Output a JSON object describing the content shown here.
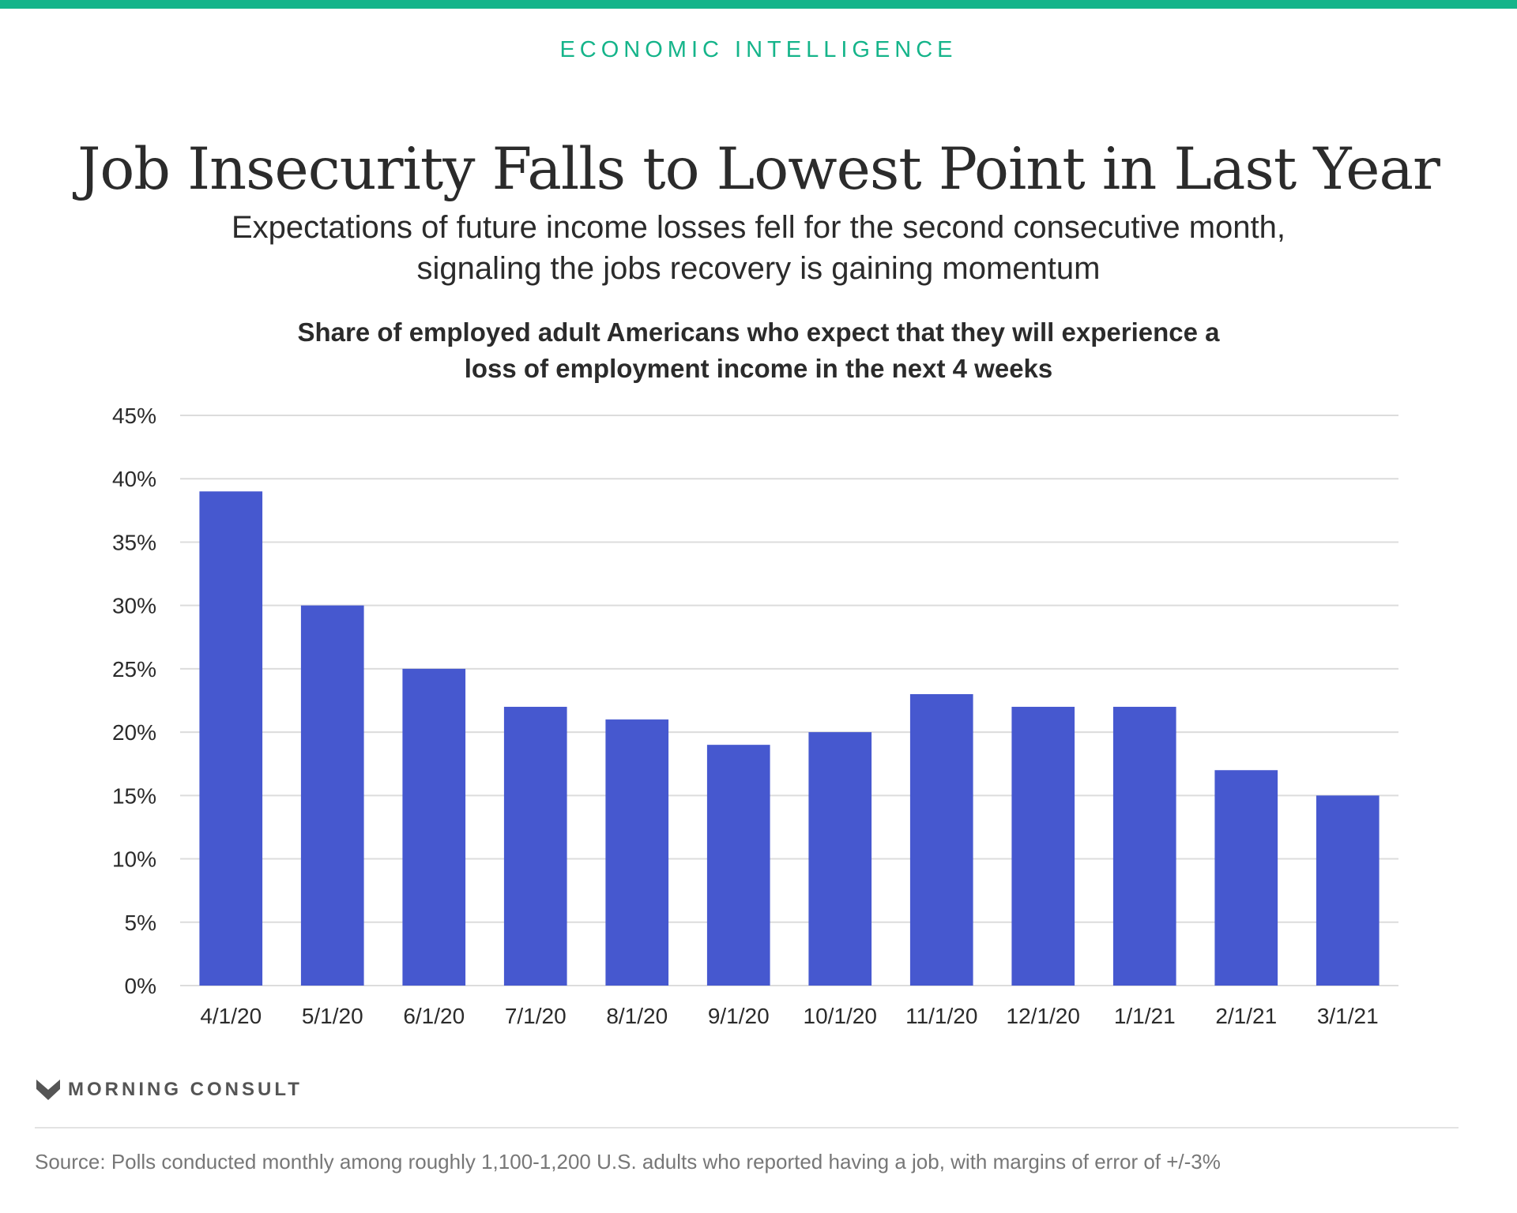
{
  "header": {
    "kicker": "ECONOMIC INTELLIGENCE",
    "title": "Job Insecurity Falls to Lowest Point in Last Year",
    "subtitle": "Expectations of future income losses fell for the second consecutive month, signaling the jobs recovery is gaining momentum"
  },
  "chart_data": {
    "type": "bar",
    "title": "Share of employed adult Americans who expect that they will experience a loss of employment income in the next 4 weeks",
    "xlabel": "",
    "ylabel": "",
    "categories": [
      "4/1/20",
      "5/1/20",
      "6/1/20",
      "7/1/20",
      "8/1/20",
      "9/1/20",
      "10/1/20",
      "11/1/20",
      "12/1/20",
      "1/1/21",
      "2/1/21",
      "3/1/21"
    ],
    "values": [
      39,
      30,
      25,
      22,
      21,
      19,
      20,
      23,
      22,
      22,
      17,
      15
    ],
    "ylim": [
      0,
      45
    ],
    "yticks": [
      0,
      5,
      10,
      15,
      20,
      25,
      30,
      35,
      40,
      45
    ],
    "ytick_suffix": "%",
    "grid": true,
    "bar_color": "#4658cf",
    "grid_color": "#dcdcdc"
  },
  "footer": {
    "brand": "MORNING CONSULT",
    "source": "Source: Polls conducted monthly among roughly 1,100-1,200 U.S. adults who reported having a job, with margins of error of +/-3%"
  },
  "colors": {
    "accent": "#15b48a",
    "text": "#2b2b2b",
    "muted": "#777777"
  }
}
